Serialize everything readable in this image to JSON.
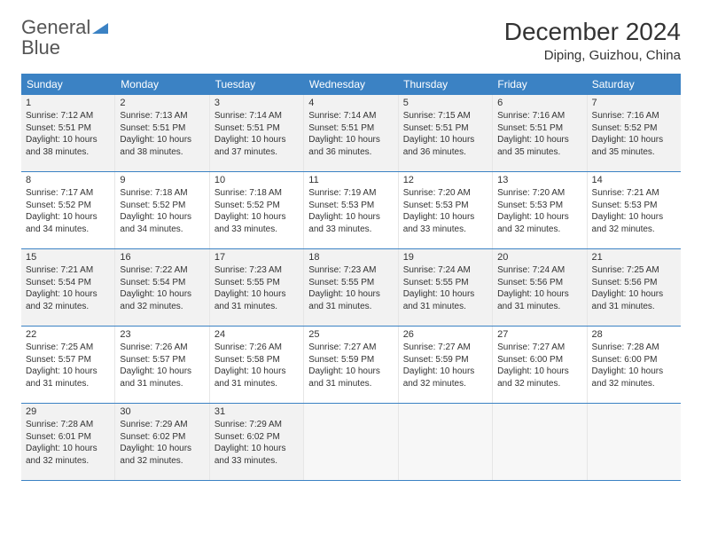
{
  "logo": {
    "text1": "General",
    "text2": "Blue"
  },
  "title": "December 2024",
  "location": "Diping, Guizhou, China",
  "colors": {
    "header_bg": "#3b82c4",
    "header_text": "#ffffff",
    "border": "#3b82c4",
    "cell_border": "#e6e6e6",
    "alt_bg": "#f2f2f2",
    "text": "#333333"
  },
  "dayNames": [
    "Sunday",
    "Monday",
    "Tuesday",
    "Wednesday",
    "Thursday",
    "Friday",
    "Saturday"
  ],
  "weeks": [
    [
      {
        "num": "1",
        "sunrise": "7:12 AM",
        "sunset": "5:51 PM",
        "daylight": "10 hours and 38 minutes."
      },
      {
        "num": "2",
        "sunrise": "7:13 AM",
        "sunset": "5:51 PM",
        "daylight": "10 hours and 38 minutes."
      },
      {
        "num": "3",
        "sunrise": "7:14 AM",
        "sunset": "5:51 PM",
        "daylight": "10 hours and 37 minutes."
      },
      {
        "num": "4",
        "sunrise": "7:14 AM",
        "sunset": "5:51 PM",
        "daylight": "10 hours and 36 minutes."
      },
      {
        "num": "5",
        "sunrise": "7:15 AM",
        "sunset": "5:51 PM",
        "daylight": "10 hours and 36 minutes."
      },
      {
        "num": "6",
        "sunrise": "7:16 AM",
        "sunset": "5:51 PM",
        "daylight": "10 hours and 35 minutes."
      },
      {
        "num": "7",
        "sunrise": "7:16 AM",
        "sunset": "5:52 PM",
        "daylight": "10 hours and 35 minutes."
      }
    ],
    [
      {
        "num": "8",
        "sunrise": "7:17 AM",
        "sunset": "5:52 PM",
        "daylight": "10 hours and 34 minutes."
      },
      {
        "num": "9",
        "sunrise": "7:18 AM",
        "sunset": "5:52 PM",
        "daylight": "10 hours and 34 minutes."
      },
      {
        "num": "10",
        "sunrise": "7:18 AM",
        "sunset": "5:52 PM",
        "daylight": "10 hours and 33 minutes."
      },
      {
        "num": "11",
        "sunrise": "7:19 AM",
        "sunset": "5:53 PM",
        "daylight": "10 hours and 33 minutes."
      },
      {
        "num": "12",
        "sunrise": "7:20 AM",
        "sunset": "5:53 PM",
        "daylight": "10 hours and 33 minutes."
      },
      {
        "num": "13",
        "sunrise": "7:20 AM",
        "sunset": "5:53 PM",
        "daylight": "10 hours and 32 minutes."
      },
      {
        "num": "14",
        "sunrise": "7:21 AM",
        "sunset": "5:53 PM",
        "daylight": "10 hours and 32 minutes."
      }
    ],
    [
      {
        "num": "15",
        "sunrise": "7:21 AM",
        "sunset": "5:54 PM",
        "daylight": "10 hours and 32 minutes."
      },
      {
        "num": "16",
        "sunrise": "7:22 AM",
        "sunset": "5:54 PM",
        "daylight": "10 hours and 32 minutes."
      },
      {
        "num": "17",
        "sunrise": "7:23 AM",
        "sunset": "5:55 PM",
        "daylight": "10 hours and 31 minutes."
      },
      {
        "num": "18",
        "sunrise": "7:23 AM",
        "sunset": "5:55 PM",
        "daylight": "10 hours and 31 minutes."
      },
      {
        "num": "19",
        "sunrise": "7:24 AM",
        "sunset": "5:55 PM",
        "daylight": "10 hours and 31 minutes."
      },
      {
        "num": "20",
        "sunrise": "7:24 AM",
        "sunset": "5:56 PM",
        "daylight": "10 hours and 31 minutes."
      },
      {
        "num": "21",
        "sunrise": "7:25 AM",
        "sunset": "5:56 PM",
        "daylight": "10 hours and 31 minutes."
      }
    ],
    [
      {
        "num": "22",
        "sunrise": "7:25 AM",
        "sunset": "5:57 PM",
        "daylight": "10 hours and 31 minutes."
      },
      {
        "num": "23",
        "sunrise": "7:26 AM",
        "sunset": "5:57 PM",
        "daylight": "10 hours and 31 minutes."
      },
      {
        "num": "24",
        "sunrise": "7:26 AM",
        "sunset": "5:58 PM",
        "daylight": "10 hours and 31 minutes."
      },
      {
        "num": "25",
        "sunrise": "7:27 AM",
        "sunset": "5:59 PM",
        "daylight": "10 hours and 31 minutes."
      },
      {
        "num": "26",
        "sunrise": "7:27 AM",
        "sunset": "5:59 PM",
        "daylight": "10 hours and 32 minutes."
      },
      {
        "num": "27",
        "sunrise": "7:27 AM",
        "sunset": "6:00 PM",
        "daylight": "10 hours and 32 minutes."
      },
      {
        "num": "28",
        "sunrise": "7:28 AM",
        "sunset": "6:00 PM",
        "daylight": "10 hours and 32 minutes."
      }
    ],
    [
      {
        "num": "29",
        "sunrise": "7:28 AM",
        "sunset": "6:01 PM",
        "daylight": "10 hours and 32 minutes."
      },
      {
        "num": "30",
        "sunrise": "7:29 AM",
        "sunset": "6:02 PM",
        "daylight": "10 hours and 32 minutes."
      },
      {
        "num": "31",
        "sunrise": "7:29 AM",
        "sunset": "6:02 PM",
        "daylight": "10 hours and 33 minutes."
      },
      null,
      null,
      null,
      null
    ]
  ]
}
